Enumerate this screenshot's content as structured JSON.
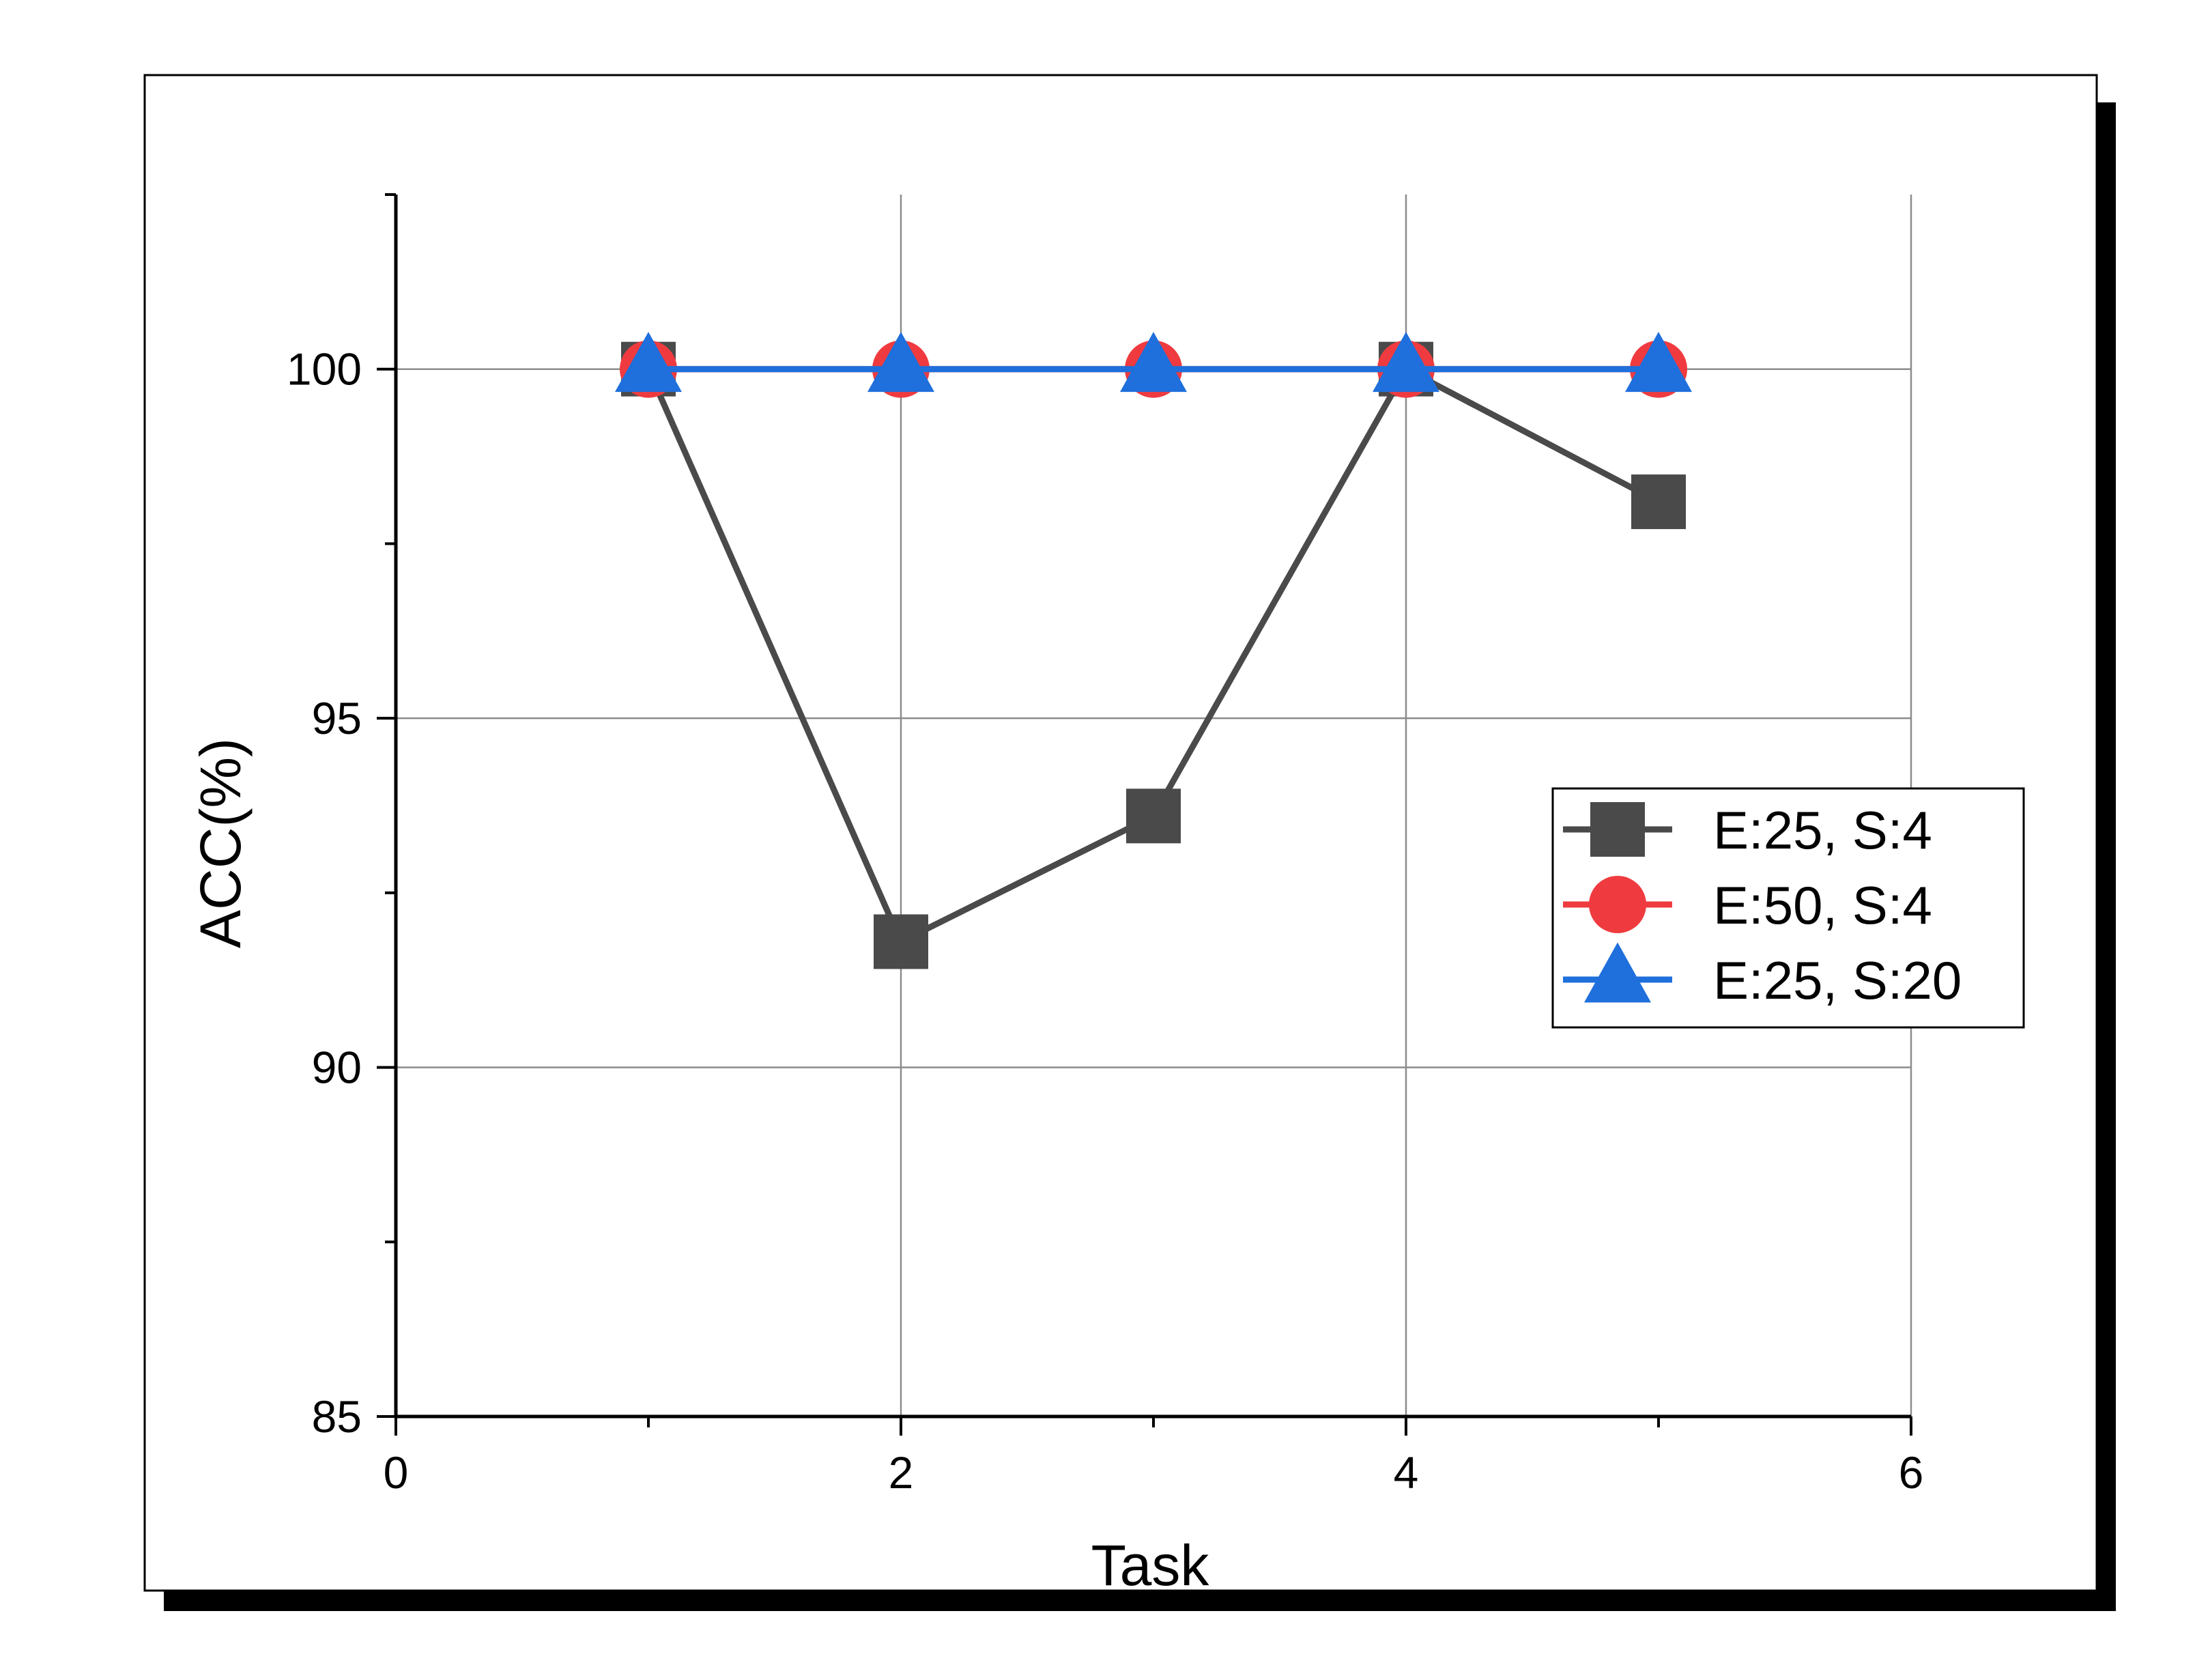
{
  "chart_data": {
    "type": "line",
    "title": "",
    "xlabel": "Task",
    "ylabel": "ACC(%)",
    "xlim": [
      0,
      6
    ],
    "ylim": [
      85,
      102.5
    ],
    "x_ticks": [
      0,
      2,
      4,
      6
    ],
    "x_minor_ticks": [
      1,
      3,
      5
    ],
    "y_ticks": [
      85,
      90,
      95,
      100
    ],
    "y_minor_ticks": [
      87.5,
      92.5,
      97.5,
      102.5
    ],
    "grid": true,
    "legend_position": "right",
    "x": [
      1,
      2,
      3,
      4,
      5
    ],
    "series": [
      {
        "name": "E:25, S:4",
        "marker": "square",
        "color": "#4a4a4a",
        "values": [
          100,
          91.8,
          93.6,
          100,
          98.1
        ]
      },
      {
        "name": "E:50, S:4",
        "marker": "circle",
        "color": "#ef3b3f",
        "values": [
          100,
          100,
          100,
          100,
          100
        ]
      },
      {
        "name": "E:25, S:20",
        "marker": "triangle",
        "color": "#1f6fdc",
        "values": [
          100,
          100,
          100,
          100,
          100
        ]
      }
    ]
  }
}
